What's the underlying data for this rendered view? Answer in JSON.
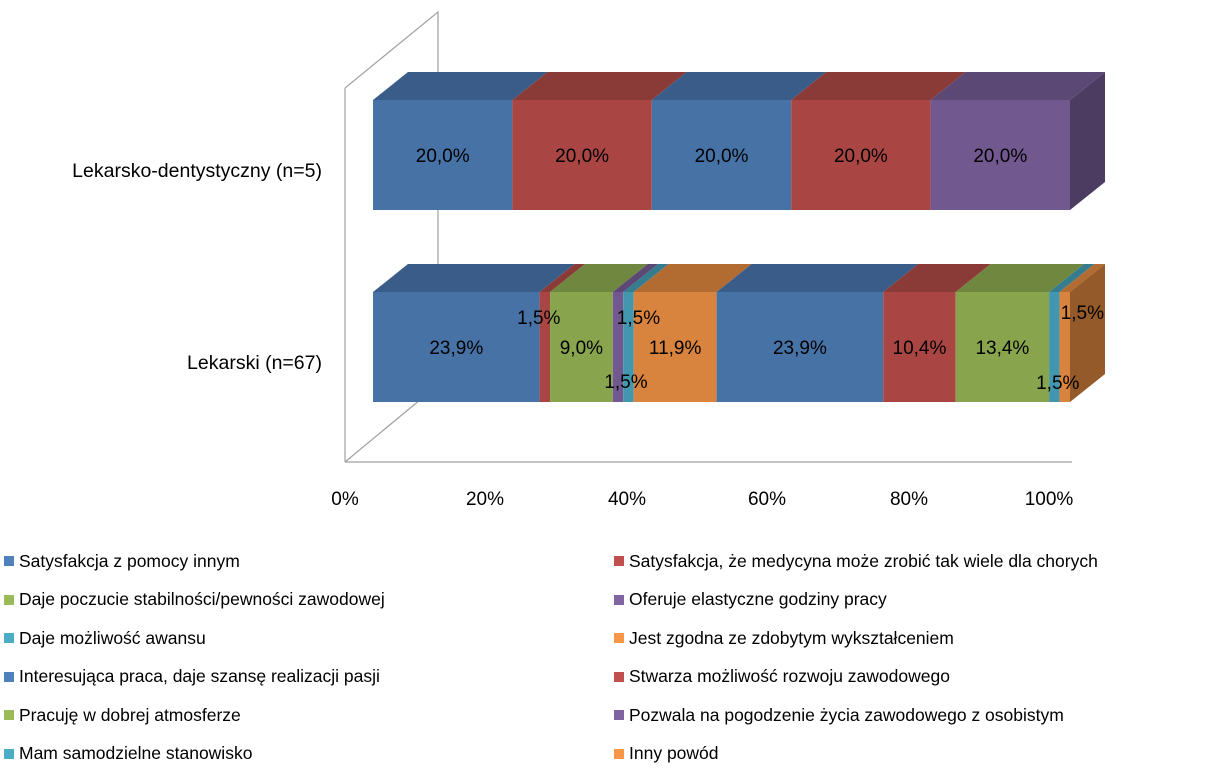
{
  "chart_data": {
    "type": "bar",
    "orientation": "horizontal",
    "stacked": "100%",
    "three_d": true,
    "categories": [
      "Lekarsko-dentystyczny (n=5)",
      "Lekarski (n=67)"
    ],
    "x_ticks": [
      "0%",
      "20%",
      "40%",
      "60%",
      "80%",
      "100%"
    ],
    "xlim": [
      0,
      100
    ],
    "legend_position": "bottom",
    "series": [
      {
        "name": "Satysfakcja z pomocy innym",
        "color": "#4F81BD",
        "values": [
          20.0,
          23.9
        ],
        "labels": [
          "20,0%",
          "23,9%"
        ]
      },
      {
        "name": "Satysfakcja, że medycyna może zrobić tak wiele dla chorych",
        "color": "#C0504D",
        "values": [
          20.0,
          1.5
        ],
        "labels": [
          "20,0%",
          "1,5%"
        ]
      },
      {
        "name": "Daje poczucie stabilności/pewności zawodowej",
        "color": "#9BBB59",
        "values": [
          0,
          9.0
        ],
        "labels": [
          "",
          "9,0%"
        ]
      },
      {
        "name": "Oferuje elastyczne godziny pracy",
        "color": "#8064A2",
        "values": [
          0,
          1.5
        ],
        "labels": [
          "",
          "1,5%"
        ]
      },
      {
        "name": "Daje możliwość awansu",
        "color": "#4BACC6",
        "values": [
          0,
          1.5
        ],
        "labels": [
          "",
          "1,5%"
        ]
      },
      {
        "name": "Jest zgodna ze zdobytym wykształceniem",
        "color": "#F79646",
        "values": [
          0,
          11.9
        ],
        "labels": [
          "",
          "11,9%"
        ]
      },
      {
        "name": "Interesująca praca, daje szansę realizacji pasji",
        "color": "#4F81BD",
        "values": [
          20.0,
          23.9
        ],
        "labels": [
          "20,0%",
          "23,9%"
        ]
      },
      {
        "name": "Stwarza możliwość rozwoju zawodowego",
        "color": "#C0504D",
        "values": [
          20.0,
          10.4
        ],
        "labels": [
          "20,0%",
          "10,4%"
        ]
      },
      {
        "name": "Pracuję w dobrej atmosferze",
        "color": "#9BBB59",
        "values": [
          0,
          13.4
        ],
        "labels": [
          "",
          "13,4%"
        ]
      },
      {
        "name": "Pozwala na pogodzenie życia zawodowego z osobistym",
        "color": "#8064A2",
        "values": [
          20.0,
          0
        ],
        "labels": [
          "20,0%",
          ""
        ]
      },
      {
        "name": "Mam samodzielne stanowisko",
        "color": "#4BACC6",
        "values": [
          0,
          1.5
        ],
        "labels": [
          "",
          "1,5%"
        ]
      },
      {
        "name": "Inny powód",
        "color": "#F79646",
        "values": [
          0,
          1.5
        ],
        "labels": [
          "",
          "1,5%"
        ]
      }
    ]
  }
}
